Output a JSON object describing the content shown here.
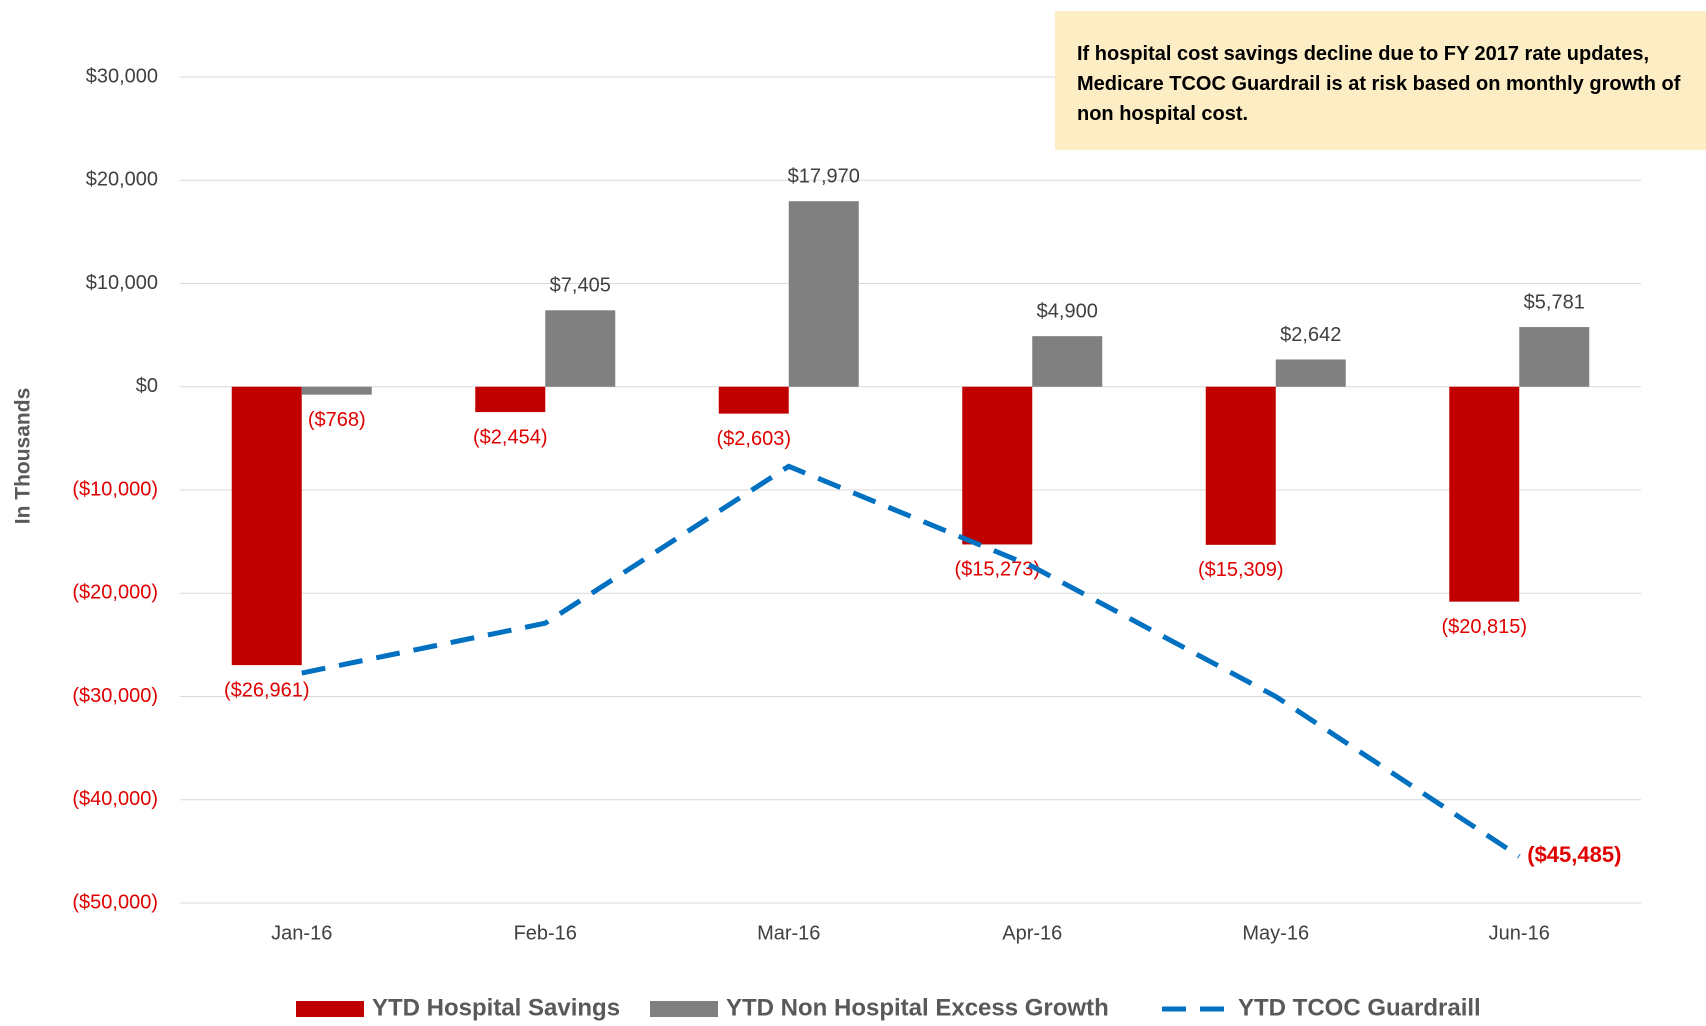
{
  "chart_data": {
    "type": "bar",
    "y_axis_label": "In Thousands",
    "annotation": "If hospital cost savings decline due to FY 2017 rate updates, Medicare TCOC Guardrail is at risk based on monthly growth of non hospital cost.",
    "categories": [
      "Jan-16",
      "Feb-16",
      "Mar-16",
      "Apr-16",
      "May-16",
      "Jun-16"
    ],
    "series": [
      {
        "name": "YTD Hospital Savings",
        "type": "bar",
        "color": "#c00000",
        "values": [
          -26961,
          -2454,
          -2603,
          -15273,
          -15309,
          -20815
        ],
        "value_labels": [
          "($26,961)",
          "($2,454)",
          "($2,603)",
          "($15,273)",
          "($15,309)",
          "($20,815)"
        ]
      },
      {
        "name": "YTD Non Hospital Excess Growth",
        "type": "bar",
        "color": "#808080",
        "values": [
          -768,
          7405,
          17970,
          4900,
          2642,
          5781
        ],
        "value_labels": [
          "($768)",
          "$7,405",
          "$17,970",
          "$4,900",
          "$2,642",
          "$5,781"
        ]
      },
      {
        "name": "YTD TCOC Guardraill",
        "type": "line",
        "color": "#0070c0",
        "dashed": true,
        "values": [
          -27729,
          -22900,
          -7700,
          -17400,
          -30000,
          -45485
        ],
        "value_labels": [
          null,
          null,
          null,
          null,
          null,
          "($45,485)"
        ]
      }
    ],
    "ylim": [
      -50000,
      30000
    ],
    "yticks": [
      {
        "value": -50000,
        "label": "($50,000)"
      },
      {
        "value": -40000,
        "label": "($40,000)"
      },
      {
        "value": -30000,
        "label": "($30,000)"
      },
      {
        "value": -20000,
        "label": "($20,000)"
      },
      {
        "value": -10000,
        "label": "($10,000)"
      },
      {
        "value": 0,
        "label": "$0"
      },
      {
        "value": 10000,
        "label": "$10,000"
      },
      {
        "value": 20000,
        "label": "$20,000"
      },
      {
        "value": 30000,
        "label": "$30,000"
      }
    ],
    "grid": true,
    "negative_color": "#e00000"
  }
}
